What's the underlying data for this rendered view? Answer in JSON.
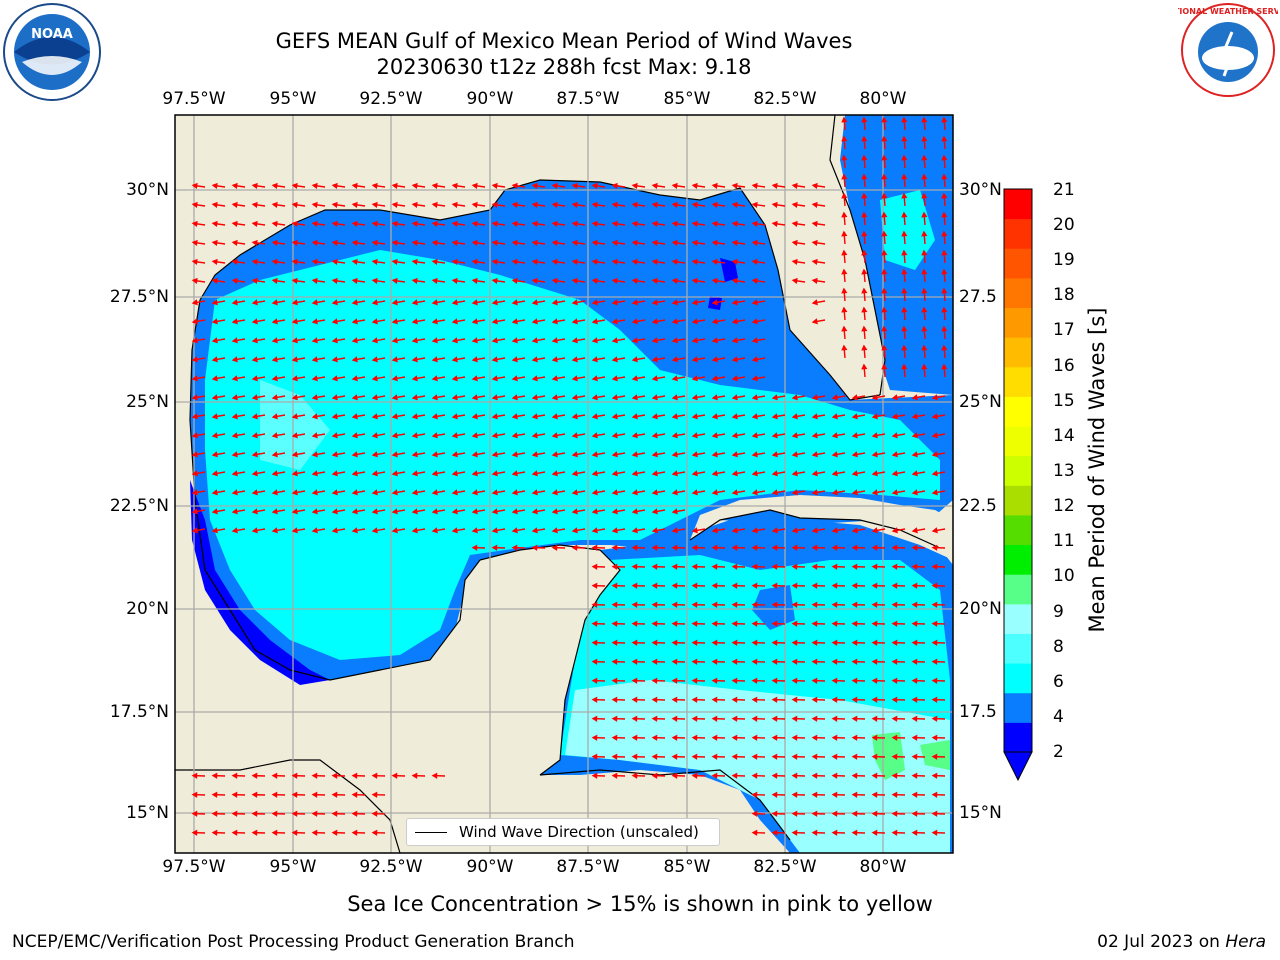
{
  "title": "GEFS MEAN Gulf of Mexico Mean Period of Wind Waves",
  "subtitle": "20230630 t12z 288h fcst   Max: 9.18",
  "logos": {
    "left": "NOAA",
    "right": "NATIONAL WEATHER SERVICE"
  },
  "lon_ticks": [
    "97.5°W",
    "95°W",
    "92.5°W",
    "90°W",
    "87.5°W",
    "85°W",
    "82.5°W",
    "80°W"
  ],
  "lat_ticks_left": [
    "30°N",
    "27.5°N",
    "25°N",
    "22.5°N",
    "20°N",
    "17.5°N",
    "15°N"
  ],
  "lat_ticks_right": [
    "30°N",
    "27.5",
    "25°N",
    "22.5",
    "20°N",
    "17.5",
    "15°N"
  ],
  "legend_label": "Wind Wave Direction (unscaled)",
  "colorbar": {
    "label": "Mean Period of Wind Waves [s]",
    "ticks": [
      "21",
      "20",
      "19",
      "18",
      "17",
      "16",
      "15",
      "14",
      "13",
      "12",
      "11",
      "10",
      "9",
      "8",
      "6",
      "4",
      "2"
    ],
    "colors": [
      "#0000ff",
      "#0a7dff",
      "#00ffff",
      "#4dffff",
      "#99ffff",
      "#57ff88",
      "#00ee00",
      "#55dd00",
      "#aadd00",
      "#ccff00",
      "#eeff00",
      "#ffff00",
      "#ffdd00",
      "#ffbb00",
      "#ff9900",
      "#ff7700",
      "#ff5500",
      "#ff3300",
      "#ff0000"
    ]
  },
  "note": "Sea Ice Concentration > 15% is shown in pink to yellow",
  "footer_left": "NCEP/EMC/Verification Post Processing Product Generation Branch",
  "footer_right_date": "02 Jul 2023 on",
  "footer_right_host": "Hera"
}
